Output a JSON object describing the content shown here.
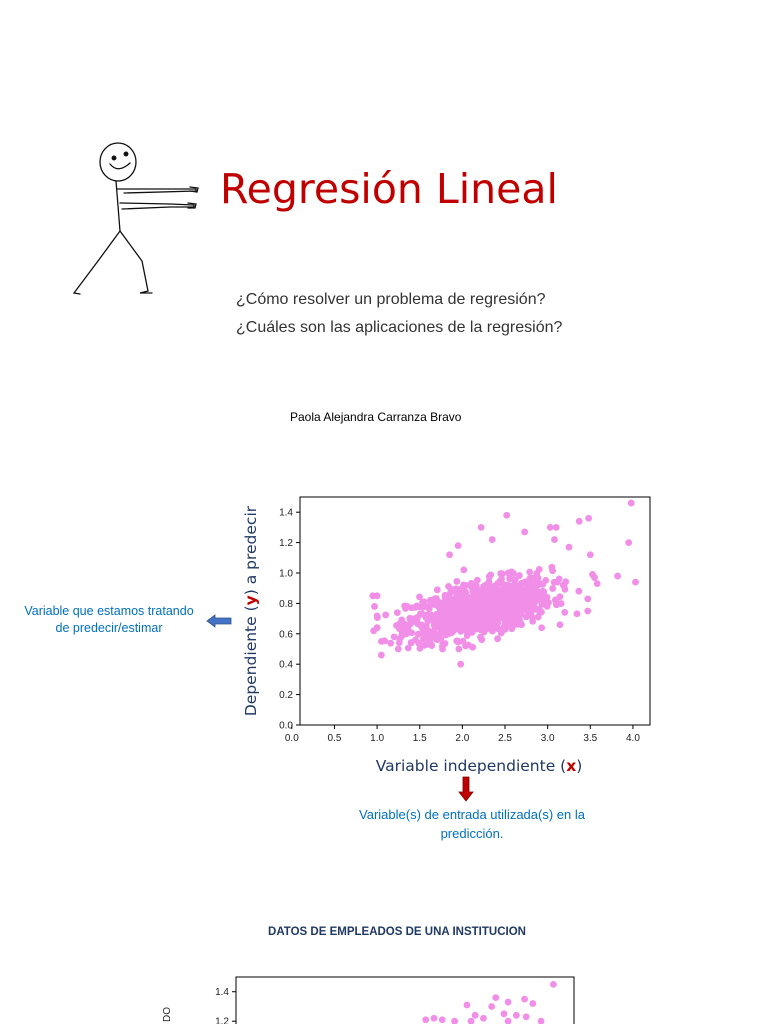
{
  "title": "Regresión Lineal",
  "subtitles": [
    "¿Cómo resolver un problema de regresión?",
    "¿Cuáles son las aplicaciones de la regresión?"
  ],
  "author": "Paola Alejandra Carranza Bravo",
  "annotations": {
    "y_note": "Variable que estamos tratando de predecir/estimar",
    "x_note": "Variable(s) de entrada utilizada(s) en la predicción."
  },
  "chart2_title": "DATOS DE EMPLEADOS DE UNA INSTITUCION",
  "colors": {
    "title": "#c00000",
    "annotation": "#0070c0",
    "points": "#f08ee8",
    "axis_label": "#1f3864",
    "x_highlight": "#c00000",
    "arrow_left": "#4472c4",
    "arrow_down": "#c00000"
  },
  "chart_data": [
    {
      "type": "scatter",
      "xlabel_parts": [
        "Variable independiente (",
        "x",
        ")"
      ],
      "ylabel_parts": [
        "Dependiente (",
        "y",
        ") a predecir"
      ],
      "xlim": [
        0.0,
        4.2
      ],
      "ylim": [
        0.0,
        1.5
      ],
      "xticks": [
        "0.0",
        "0.5",
        "1.0",
        "1.5",
        "2.0",
        "2.5",
        "3.0",
        "3.5",
        "4.0"
      ],
      "yticks": [
        "0.0",
        "0.2",
        "0.4",
        "0.6",
        "0.8",
        "1.0",
        "1.2",
        "1.4"
      ],
      "point_count": 1000,
      "points": [
        [
          1.0,
          0.85
        ],
        [
          0.95,
          0.85
        ],
        [
          0.97,
          0.78
        ],
        [
          0.96,
          0.62
        ],
        [
          1.05,
          0.46
        ],
        [
          1.05,
          0.55
        ],
        [
          1.98,
          0.4
        ],
        [
          3.47,
          0.75
        ],
        [
          2.93,
          0.64
        ],
        [
          3.47,
          0.83
        ],
        [
          3.58,
          0.93
        ],
        [
          3.95,
          1.2
        ],
        [
          3.98,
          1.46
        ],
        [
          4.03,
          0.94
        ],
        [
          3.82,
          0.98
        ],
        [
          3.48,
          1.36
        ],
        [
          3.37,
          1.34
        ],
        [
          3.1,
          1.3
        ],
        [
          3.03,
          1.3
        ],
        [
          2.52,
          1.38
        ],
        [
          2.22,
          1.3
        ],
        [
          2.73,
          1.27
        ],
        [
          3.55,
          0.97
        ],
        [
          3.5,
          1.12
        ],
        [
          1.2,
          0.58
        ],
        [
          1.45,
          0.56
        ],
        [
          3.25,
          1.17
        ],
        [
          3.08,
          1.22
        ],
        [
          2.35,
          1.22
        ],
        [
          1.85,
          1.12
        ],
        [
          1.95,
          1.18
        ]
      ]
    },
    {
      "type": "scatter",
      "title": "DATOS DE EMPLEADOS DE UNA INSTITUCION",
      "ylim": [
        0.0,
        1.5
      ],
      "yticks": [
        "1.4",
        "1.2"
      ],
      "ylabel_visible": "DO",
      "points": [
        [
          3.95,
          1.45
        ],
        [
          3.6,
          1.35
        ],
        [
          3.25,
          1.36
        ],
        [
          3.4,
          1.33
        ],
        [
          3.7,
          1.32
        ],
        [
          3.2,
          1.3
        ],
        [
          2.9,
          1.31
        ],
        [
          3.0,
          1.24
        ],
        [
          3.35,
          1.25
        ],
        [
          3.5,
          1.24
        ],
        [
          3.62,
          1.23
        ],
        [
          3.1,
          1.22
        ],
        [
          2.4,
          1.21
        ],
        [
          2.5,
          1.22
        ],
        [
          2.6,
          1.21
        ],
        [
          2.75,
          1.2
        ],
        [
          2.95,
          1.2
        ],
        [
          3.4,
          1.2
        ],
        [
          3.8,
          1.2
        ]
      ]
    }
  ]
}
